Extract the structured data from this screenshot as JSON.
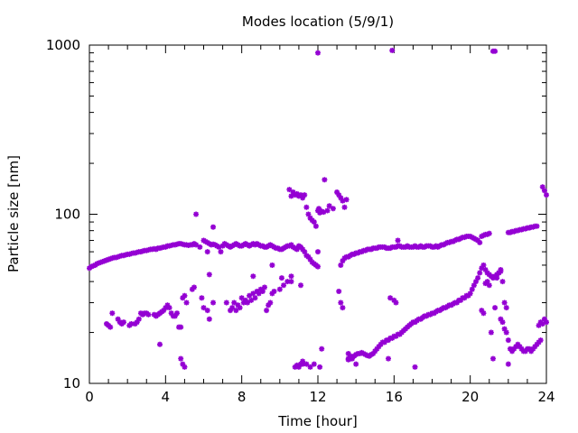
{
  "chart_data": {
    "type": "scatter",
    "title": "Modes location (5/9/1)",
    "xlabel": "Time [hour]",
    "ylabel": "Particle size [nm]",
    "xlim": [
      0,
      24
    ],
    "ylim": [
      10,
      1000
    ],
    "y_scale": "log",
    "x_ticks": [
      0,
      4,
      8,
      12,
      16,
      20,
      24
    ],
    "x_tick_labels": [
      "0",
      "4",
      "8",
      "12",
      "16",
      "20",
      "24"
    ],
    "y_ticks": [
      10,
      100,
      1000
    ],
    "y_tick_labels": [
      "10",
      "100",
      "1000"
    ],
    "grid": false,
    "legend": "none",
    "marker": "asterisk",
    "marker_color": "#9400d3",
    "series": [
      {
        "x": [
          0.0,
          0.1,
          0.2,
          0.3,
          0.4,
          0.5,
          0.6,
          0.7,
          0.8,
          0.9,
          1.0,
          1.1,
          1.2,
          1.3,
          1.4,
          1.5,
          1.6,
          1.7,
          1.8,
          1.9,
          2.0,
          2.1,
          2.2,
          2.3,
          2.4,
          2.5,
          2.6,
          2.7,
          2.8,
          2.9,
          3.0,
          3.1,
          3.2,
          3.3,
          3.4,
          3.5,
          3.6,
          3.7,
          3.8,
          3.9,
          4.0,
          4.1,
          4.2,
          4.3,
          4.4,
          4.5,
          4.6,
          4.7,
          4.8,
          4.9,
          5.0,
          5.1,
          5.2,
          5.3,
          5.4,
          5.5,
          5.6,
          5.8,
          6.0,
          6.1,
          6.2,
          6.3,
          6.4,
          6.5,
          6.6,
          6.7,
          6.8,
          6.9,
          7.0,
          7.1,
          7.2,
          7.3,
          7.4,
          7.5,
          7.6,
          7.7,
          7.8,
          7.9,
          8.0,
          8.1,
          8.2,
          8.3,
          8.4,
          8.5,
          8.6,
          8.7,
          8.8,
          8.9,
          9.0,
          9.1,
          9.2,
          9.3,
          9.4,
          9.5,
          9.6,
          9.7,
          9.8,
          9.9,
          10.0,
          10.1,
          10.2,
          10.3,
          10.4,
          10.5,
          10.6,
          10.7,
          10.8,
          10.9,
          11.0,
          11.1,
          11.2,
          11.3,
          11.4,
          11.5,
          11.6,
          11.7,
          11.8,
          11.9,
          12.0,
          13.2,
          13.3,
          13.4,
          13.5,
          13.6,
          13.7,
          13.8,
          13.9,
          14.0,
          14.1,
          14.2,
          14.3,
          14.4,
          14.5,
          14.6,
          14.7,
          14.8,
          14.9,
          15.0,
          15.1,
          15.2,
          15.3,
          15.4,
          15.5,
          15.6,
          15.7,
          15.8,
          15.9,
          16.0,
          16.1,
          16.2,
          16.3,
          16.4,
          16.5,
          16.6,
          16.7,
          16.8,
          16.9,
          17.0,
          17.1,
          17.2,
          17.3,
          17.4,
          17.5,
          17.6,
          17.7,
          17.8,
          17.9,
          18.0,
          18.1,
          18.2,
          18.3,
          18.4,
          18.5,
          18.6,
          18.7,
          18.8,
          18.9,
          19.0,
          19.1,
          19.2,
          19.3,
          19.4,
          19.5,
          19.6,
          19.7,
          19.8,
          19.9,
          20.0,
          20.1,
          20.2,
          20.3,
          20.4,
          20.5,
          20.6,
          20.7,
          20.8,
          20.9,
          21.0,
          22.0,
          22.1,
          22.2,
          22.3,
          22.4,
          22.5,
          22.6,
          22.7,
          22.8,
          22.9,
          23.0,
          23.1,
          23.2,
          23.3,
          23.4,
          23.5,
          23.6,
          23.7,
          23.8,
          23.9,
          24.0,
          0.9,
          1.0,
          1.1,
          1.2,
          1.5,
          1.6,
          1.7,
          1.8,
          2.1,
          2.2,
          2.4,
          2.5,
          2.6,
          2.7,
          2.8,
          2.9,
          3.0,
          3.1,
          3.4,
          3.5,
          3.6,
          3.7,
          3.8,
          3.9,
          4.0,
          4.1,
          4.2,
          4.3,
          4.4,
          4.5,
          4.6,
          4.7,
          4.8,
          4.9,
          5.0,
          5.1,
          5.4,
          5.5,
          5.9,
          6.0,
          6.2,
          6.3,
          6.5,
          7.2,
          7.4,
          7.5,
          7.6,
          7.7,
          7.8,
          7.9,
          8.0,
          8.1,
          8.2,
          8.3,
          8.4,
          8.5,
          8.6,
          8.7,
          8.8,
          8.9,
          9.0,
          9.1,
          9.2,
          9.3,
          9.4,
          9.5,
          9.6,
          9.7,
          10.0,
          10.2,
          10.4,
          10.6,
          10.8,
          10.9,
          11.0,
          11.1,
          11.2,
          13.6,
          13.7,
          13.8,
          13.9,
          14.0,
          14.1,
          14.2,
          14.3,
          14.4,
          14.5,
          14.6,
          14.7,
          14.8,
          14.9,
          15.0,
          15.1,
          15.2,
          15.3,
          15.4,
          15.5,
          15.6,
          15.7,
          15.8,
          15.9,
          16.0,
          16.1,
          16.2,
          16.3,
          16.4,
          16.5,
          16.6,
          16.7,
          16.8,
          16.9,
          17.0,
          17.1,
          17.2,
          17.3,
          17.4,
          17.5,
          17.6,
          17.7,
          17.8,
          17.9,
          18.0,
          18.1,
          18.2,
          18.3,
          18.4,
          18.5,
          18.6,
          18.7,
          18.8,
          18.9,
          19.0,
          19.1,
          19.2,
          19.3,
          19.4,
          19.5,
          19.6,
          19.7,
          19.8,
          19.9,
          20.0,
          20.1,
          20.2,
          20.3,
          20.4,
          20.5,
          20.6,
          20.7,
          20.8,
          20.9,
          21.0,
          21.1,
          21.2,
          21.3,
          21.4,
          21.5,
          21.6,
          21.7,
          21.8,
          21.9,
          22.0,
          22.1,
          22.2,
          22.3,
          22.4,
          22.5,
          22.6,
          22.7,
          22.8,
          22.9,
          23.0,
          23.1,
          23.2,
          23.3,
          23.4,
          23.5,
          23.6,
          23.7,
          23.8,
          23.9,
          24.0,
          10.5,
          10.6,
          10.7,
          10.8,
          10.9,
          11.0,
          11.1,
          11.2,
          11.3,
          11.4,
          11.5,
          11.6,
          11.7,
          11.8,
          11.9,
          12.0,
          12.05,
          12.1,
          12.2,
          12.3,
          12.5,
          12.6,
          12.8,
          13.0,
          13.1,
          13.2,
          13.3,
          13.4,
          13.5,
          13.6,
          13.7,
          14.0,
          17.1,
          3.7,
          4.8,
          4.9,
          5.0,
          11.2,
          11.4,
          11.6,
          11.8,
          12.1,
          12.2,
          13.6,
          13.7,
          13.8,
          15.7,
          15.8,
          16.0,
          16.1,
          16.2,
          5.6,
          6.2,
          6.3,
          6.5,
          8.6,
          9.6,
          10.1,
          10.6,
          11.1,
          12.0,
          12.35,
          13.1,
          13.2,
          13.3,
          20.6,
          20.7,
          21.0,
          21.1,
          21.2,
          21.3,
          21.6,
          21.7,
          21.8,
          21.9,
          22.0,
          20.8,
          20.9,
          21.4,
          21.5,
          21.6,
          12.0,
          15.9,
          21.2,
          21.3
        ],
        "y": [
          48,
          49,
          49.5,
          50,
          51,
          51.5,
          52,
          52.5,
          53,
          53.5,
          54,
          54.5,
          55,
          55.5,
          55.5,
          56,
          56.5,
          57,
          57,
          57.5,
          58,
          58,
          58.5,
          59,
          59,
          59.5,
          60,
          60,
          60.5,
          61,
          61,
          61.5,
          62,
          62,
          62.5,
          62,
          63,
          63,
          63.5,
          64,
          64,
          65,
          65,
          65.5,
          66,
          66,
          66.5,
          67,
          67,
          66.5,
          66,
          66,
          65.5,
          66,
          66,
          67,
          66,
          64,
          70,
          69,
          68,
          67,
          66,
          66.5,
          66,
          65,
          64,
          60,
          65,
          67,
          66,
          65,
          64,
          65,
          66,
          67,
          66,
          65,
          65,
          66,
          67,
          66,
          65,
          66,
          67,
          66,
          67,
          66,
          65,
          65,
          64,
          64,
          65,
          66,
          65,
          64,
          63,
          63,
          62,
          62,
          63,
          64,
          65,
          65,
          66,
          64,
          63,
          62,
          65,
          64,
          62,
          60,
          57,
          56,
          54,
          52,
          51,
          50,
          49,
          50,
          53,
          55,
          56,
          56,
          57,
          58,
          58,
          59,
          59,
          60,
          60,
          61,
          61,
          62,
          62,
          62,
          63,
          63,
          63,
          64,
          64,
          64,
          64,
          63,
          63,
          63,
          64,
          64,
          64,
          65,
          65,
          64,
          64,
          64,
          65,
          64,
          64,
          64,
          65,
          64,
          64,
          65,
          64,
          64,
          65,
          65,
          65,
          64,
          64,
          65,
          64,
          65,
          66,
          66,
          67,
          68,
          68,
          69,
          69,
          70,
          71,
          71,
          72,
          73,
          73,
          74,
          74,
          74,
          73,
          72,
          71,
          70,
          68,
          74,
          75,
          76,
          76,
          77,
          78,
          78,
          79,
          79,
          80,
          80,
          81,
          81,
          82,
          82,
          83,
          83,
          84,
          84,
          85,
          85,
          22,
          23,
          22.5,
          24,
          23,
          22.5,
          22,
          21.5,
          26,
          24,
          23,
          22.5,
          23,
          22,
          22.5,
          22.5,
          23,
          24,
          26,
          25.5,
          26,
          26,
          25.5,
          25.5,
          25,
          25.5,
          26,
          26.5,
          27,
          28,
          29,
          28,
          26,
          25,
          25,
          26,
          21.5,
          21.5,
          32,
          33,
          30,
          36,
          37,
          32,
          28,
          27,
          24,
          30,
          30,
          27,
          28,
          30,
          27,
          29,
          28,
          32,
          30,
          31,
          30,
          33,
          31,
          34,
          32,
          35,
          34,
          36,
          35,
          37,
          27,
          29,
          30,
          34,
          35,
          36,
          38,
          40,
          40,
          12.5,
          12.8,
          12.5,
          13,
          13.5,
          13.8,
          14,
          14.2,
          14.5,
          14.8,
          15,
          15,
          15.2,
          15,
          14.8,
          14.6,
          14.5,
          14.8,
          15,
          15.5,
          16,
          16.5,
          17,
          17.5,
          17.5,
          18,
          18,
          18.5,
          18.5,
          19,
          19,
          19.5,
          19.5,
          20,
          20.5,
          21,
          21.5,
          22,
          22.5,
          23,
          23,
          23.5,
          24,
          24,
          24.5,
          25,
          25,
          25.5,
          25.5,
          26,
          26,
          26.5,
          27,
          27,
          27.5,
          28,
          28,
          28.5,
          29,
          29,
          29.5,
          30,
          30,
          31,
          31,
          32,
          32,
          33,
          33,
          34,
          36,
          38,
          40,
          42,
          45,
          48,
          50,
          47,
          45,
          44,
          43,
          42,
          43,
          44,
          45,
          46,
          40,
          30,
          28,
          18,
          16,
          15.5,
          16,
          16.5,
          17,
          16.5,
          16,
          15.5,
          15.5,
          16,
          16,
          15.5,
          16,
          16.5,
          17,
          17.5,
          18,
          145,
          138,
          130,
          140,
          128,
          135,
          130,
          132,
          128,
          130,
          125,
          130,
          110,
          100,
          95,
          92,
          90,
          85,
          105,
          108,
          102,
          104,
          103,
          105,
          112,
          108,
          135,
          130,
          125,
          120,
          110,
          122,
          14,
          14,
          13,
          12.5,
          17,
          14,
          13,
          12.5,
          13,
          13,
          12.5,
          13,
          12.5,
          16,
          15,
          14.5,
          14,
          14,
          32,
          31,
          30,
          70,
          100,
          60,
          44,
          84,
          43,
          50,
          42,
          43,
          38,
          60,
          160,
          35,
          30,
          28,
          27,
          26,
          38,
          20,
          14,
          28,
          24,
          23,
          21,
          20,
          13,
          39,
          40,
          42,
          45,
          47,
          900,
          930,
          920,
          920
        ]
      }
    ]
  }
}
